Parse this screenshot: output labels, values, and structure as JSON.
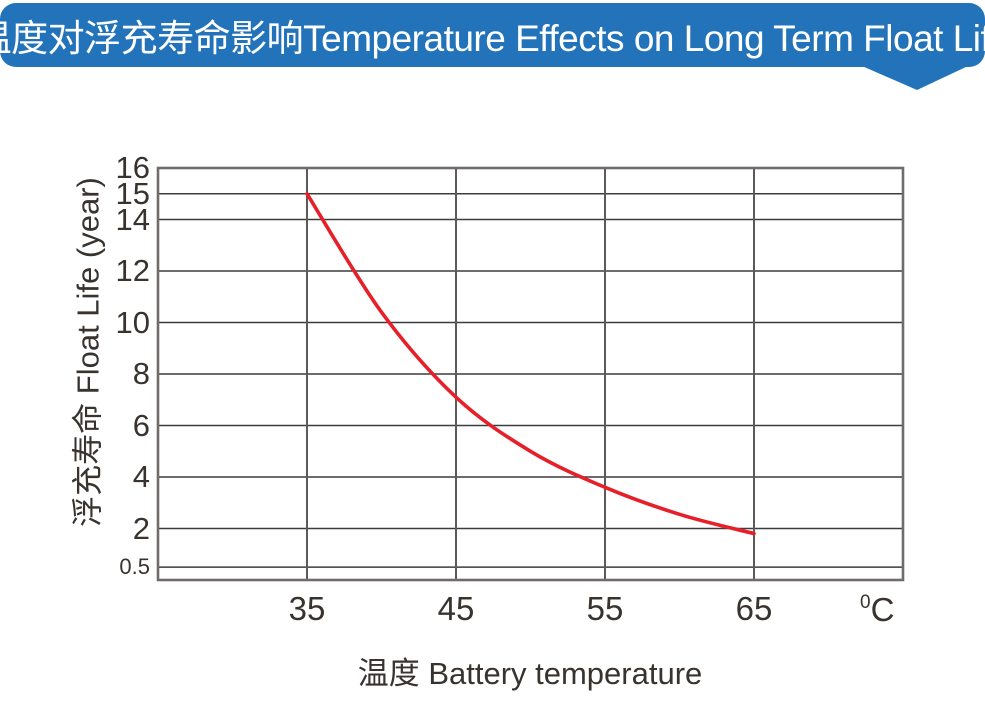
{
  "banner": {
    "title": "温度对浮充寿命影响Temperature Effects on Long Term Float Life",
    "bg_color": "#2273b9",
    "text_color": "#ffffff"
  },
  "chart_data": {
    "type": "line",
    "title": "温度对浮充寿命影响Temperature Effects on Long Term Float Life",
    "xlabel": "温度  Battery temperature",
    "ylabel": "浮充寿命  Float Life (year)",
    "x_unit_sup": "0",
    "x_unit_base": "C",
    "xlim": [
      25,
      75
    ],
    "ylim": [
      0,
      16
    ],
    "xticks": [
      35,
      45,
      55,
      65
    ],
    "yticks": [
      16,
      15,
      14,
      12,
      10,
      8,
      6,
      4,
      2,
      0.5
    ],
    "grid": true,
    "legend": "none",
    "series": [
      {
        "name": "float-life-vs-temperature",
        "color": "#e61f28",
        "points": [
          [
            35,
            15
          ],
          [
            40,
            10.4
          ],
          [
            45,
            7.1
          ],
          [
            50,
            5.0
          ],
          [
            55,
            3.6
          ],
          [
            60,
            2.55
          ],
          [
            65,
            1.8
          ]
        ]
      }
    ],
    "colors": {
      "plot_bg": "#ffffff",
      "grid_h": "#3c3c3c",
      "grid_v": "#5a5a5a",
      "border": "#6f6c6a",
      "label_text": "#38332f"
    }
  }
}
